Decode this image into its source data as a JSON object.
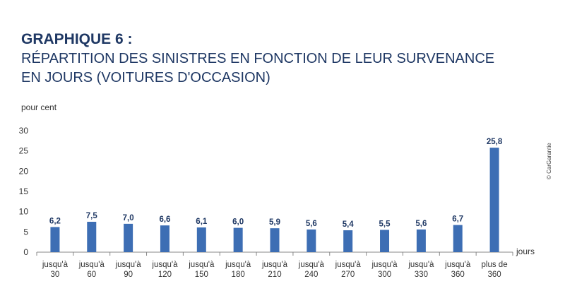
{
  "heading": "GRAPHIQUE 6 :",
  "subtitle": "RÉPARTITION DES SINISTRES EN FONCTION DE LEUR SURVENANCE EN JOURS (VOITURES D'OCCASION)",
  "credit": "© CarGarantie",
  "colors": {
    "bar": "#3d6eb4",
    "text": "#1f3864"
  },
  "chart_data": {
    "type": "bar",
    "ylabel": "pour cent",
    "xlabel": "jours",
    "ylim": [
      0,
      30
    ],
    "yticks": [
      "0",
      "5",
      "10",
      "15",
      "20",
      "25",
      "30"
    ],
    "grid": false,
    "categories": [
      [
        "jusqu'à",
        "30"
      ],
      [
        "jusqu'à",
        "60"
      ],
      [
        "jusqu'à",
        "90"
      ],
      [
        "jusqu'à",
        "120"
      ],
      [
        "jusqu'à",
        "150"
      ],
      [
        "jusqu'à",
        "180"
      ],
      [
        "jusqu'à",
        "210"
      ],
      [
        "jusqu'à",
        "240"
      ],
      [
        "jusqu'à",
        "270"
      ],
      [
        "jusqu'à",
        "300"
      ],
      [
        "jusqu'à",
        "330"
      ],
      [
        "jusqu'à",
        "360"
      ],
      [
        "plus de",
        "360"
      ]
    ],
    "values": [
      6.2,
      7.5,
      7.0,
      6.6,
      6.1,
      6.0,
      5.9,
      5.6,
      5.4,
      5.5,
      5.6,
      6.7,
      25.8
    ],
    "value_labels": [
      "6,2",
      "7,5",
      "7,0",
      "6,6",
      "6,1",
      "6,0",
      "5,9",
      "5,6",
      "5,4",
      "5,5",
      "5,6",
      "6,7",
      "25,8"
    ]
  }
}
